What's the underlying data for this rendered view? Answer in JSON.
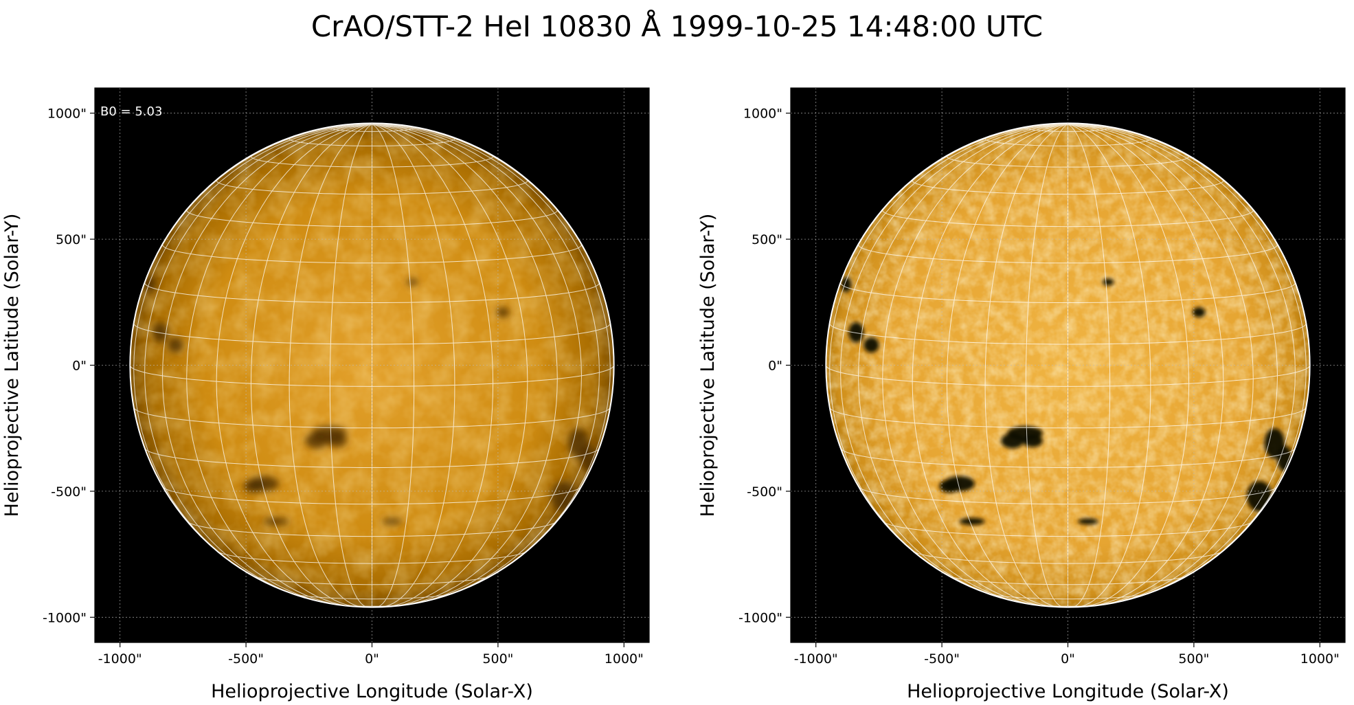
{
  "title": "CrAO/STT-2 HeI 10830 Å 1999-10-25 14:48:00 UTC",
  "colors": {
    "background": "#000000",
    "disk_dark": "#7a4a00",
    "disk_mid": "#c98500",
    "disk_light": "#f2b63a",
    "grid": "#ffffff"
  },
  "panels": [
    {
      "id": "left",
      "annotation": "B0 = 5.03",
      "x_label": "Helioprojective Longitude (Solar-X)",
      "y_label": "Helioprojective Latitude (Solar-Y)",
      "x_ticks": [
        "-1000\"",
        "-500\"",
        "0\"",
        "500\"",
        "1000\""
      ],
      "y_ticks": [
        "1000\"",
        "500\"",
        "0\"",
        "-500\"",
        "-1000\""
      ],
      "contrast": "normal"
    },
    {
      "id": "right",
      "annotation": "",
      "x_label": "Helioprojective Longitude (Solar-X)",
      "y_label": "Helioprojective Latitude (Solar-Y)",
      "x_ticks": [
        "-1000\"",
        "-500\"",
        "0\"",
        "500\"",
        "1000\""
      ],
      "y_ticks": [
        "1000\"",
        "500\"",
        "0\"",
        "-500\"",
        "-1000\""
      ],
      "contrast": "enhanced"
    }
  ]
}
